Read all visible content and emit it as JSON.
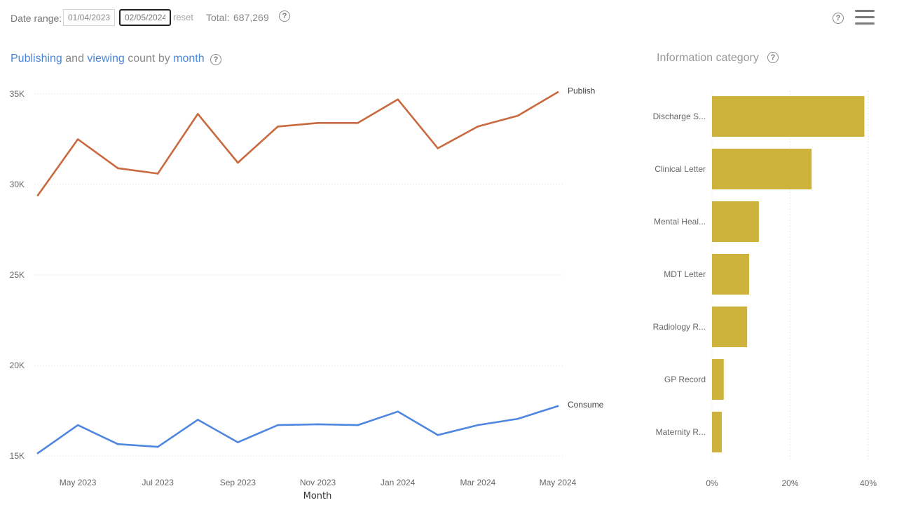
{
  "toolbar": {
    "date_range_label": "Date range:",
    "start_date": "01/04/2023",
    "end_date": "02/05/2024",
    "reset_label": "reset",
    "total_label": "Total:",
    "total_value": "687,269",
    "help_symbol": "?",
    "menu_icon": "hamburger-menu-icon"
  },
  "line_panel": {
    "title_parts": {
      "publishing": "Publishing",
      "and": " and ",
      "viewing": "viewing",
      "count_by": " count by ",
      "month": "month"
    }
  },
  "bar_panel": {
    "title": "Information category"
  },
  "colors": {
    "publish": "#c8693f",
    "consume": "#4f86df",
    "bar": "#cdb33b",
    "title_accent": "#4a86d8"
  },
  "chart_data": [
    {
      "type": "line",
      "title": "Publishing and viewing count by month",
      "xlabel": "Month",
      "ylabel": "",
      "x": [
        "Apr 2023",
        "May 2023",
        "Jun 2023",
        "Jul 2023",
        "Aug 2023",
        "Sep 2023",
        "Oct 2023",
        "Nov 2023",
        "Dec 2023",
        "Jan 2024",
        "Feb 2024",
        "Mar 2024",
        "Apr 2024",
        "May 2024"
      ],
      "x_tick_labels": [
        "May 2023",
        "Jul 2023",
        "Sep 2023",
        "Nov 2023",
        "Jan 2024",
        "Mar 2024",
        "May 2024"
      ],
      "y_ticks": [
        15000,
        20000,
        25000,
        30000,
        35000
      ],
      "y_tick_labels": [
        "15K",
        "20K",
        "25K",
        "30K",
        "35K"
      ],
      "ylim": [
        15000,
        35000
      ],
      "grid": true,
      "series": [
        {
          "name": "Publish",
          "values": [
            29400,
            32500,
            30900,
            30600,
            33900,
            31200,
            33200,
            33400,
            33400,
            34700,
            32000,
            33200,
            33800,
            35100
          ]
        },
        {
          "name": "Consume",
          "values": [
            15150,
            16700,
            15650,
            15500,
            17000,
            15750,
            16700,
            16750,
            16700,
            17450,
            16150,
            16700,
            17050,
            17750
          ]
        }
      ]
    },
    {
      "type": "bar",
      "orientation": "horizontal",
      "title": "Information category",
      "categories": [
        "Discharge S...",
        "Clinical Letter",
        "Mental Heal...",
        "MDT Letter",
        "Radiology R...",
        "GP Record",
        "Maternity R..."
      ],
      "values": [
        39.0,
        25.5,
        12.0,
        9.5,
        9.0,
        3.0,
        2.5
      ],
      "unit": "%",
      "x_ticks": [
        0,
        20,
        40
      ],
      "x_tick_labels": [
        "0%",
        "20%",
        "40%"
      ],
      "xlim": [
        0,
        40
      ],
      "grid": true
    }
  ]
}
